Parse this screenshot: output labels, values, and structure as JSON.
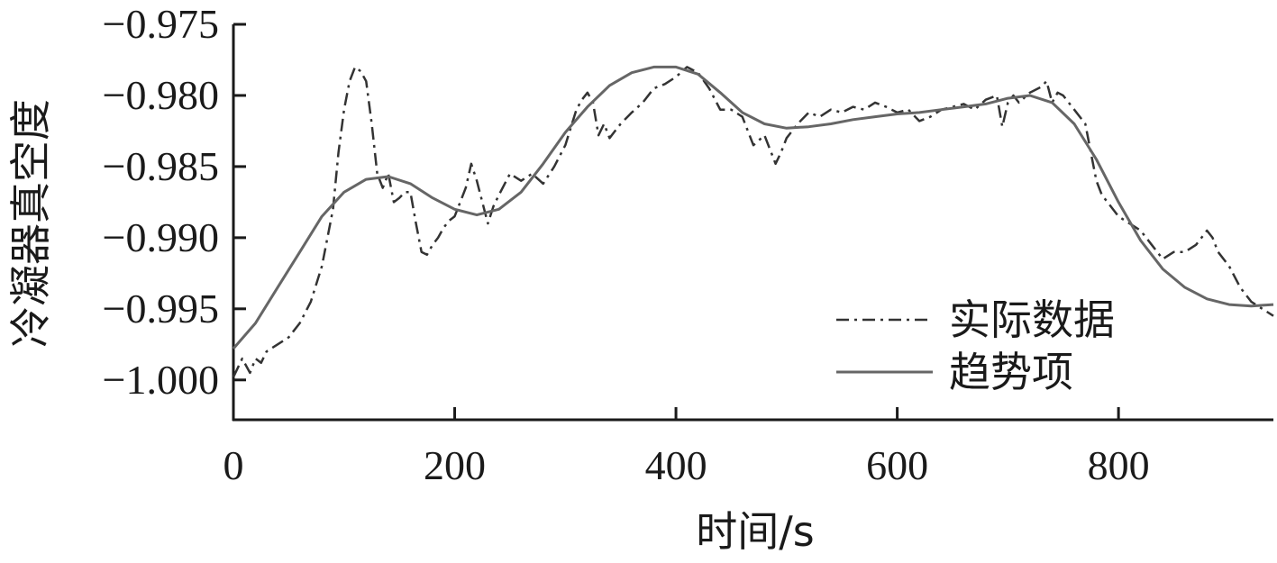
{
  "chart_data": {
    "type": "line",
    "xlabel": "时间/s",
    "ylabel": "冷凝器真空度",
    "xlim": [
      0,
      940
    ],
    "ylim": [
      -1.0028,
      -0.975
    ],
    "xticks": [
      0,
      200,
      400,
      600,
      800
    ],
    "xtick_labels": [
      "0",
      "200",
      "400",
      "600",
      "800"
    ],
    "yticks": [
      -0.975,
      -0.98,
      -0.985,
      -0.99,
      -0.995,
      -1.0
    ],
    "ytick_labels": [
      "−0.975",
      "−0.980",
      "−0.985",
      "−0.990",
      "−0.995",
      "−1.000"
    ],
    "legend_position": "bottom-right",
    "grid": false,
    "series": [
      {
        "name": "实际数据",
        "style": "dash-dot",
        "color": "#333333",
        "x": [
          0,
          8,
          15,
          20,
          25,
          30,
          40,
          50,
          60,
          70,
          80,
          90,
          95,
          100,
          105,
          110,
          115,
          120,
          125,
          130,
          135,
          140,
          145,
          150,
          155,
          160,
          165,
          170,
          175,
          180,
          185,
          190,
          195,
          200,
          210,
          215,
          220,
          225,
          230,
          235,
          240,
          250,
          260,
          270,
          280,
          290,
          300,
          310,
          315,
          320,
          325,
          330,
          335,
          340,
          345,
          350,
          360,
          370,
          380,
          390,
          400,
          410,
          420,
          430,
          440,
          450,
          460,
          470,
          480,
          490,
          495,
          500,
          510,
          520,
          530,
          540,
          550,
          560,
          570,
          580,
          590,
          600,
          610,
          620,
          630,
          640,
          650,
          660,
          670,
          680,
          690,
          695,
          700,
          705,
          710,
          720,
          730,
          735,
          740,
          745,
          750,
          760,
          770,
          775,
          780,
          785,
          790,
          800,
          810,
          820,
          830,
          840,
          850,
          860,
          870,
          880,
          885,
          890,
          900,
          910,
          920,
          930,
          940
        ],
        "y": [
          -0.9998,
          -0.9985,
          -0.9995,
          -0.9985,
          -0.9988,
          -0.998,
          -0.9975,
          -0.997,
          -0.996,
          -0.9945,
          -0.992,
          -0.988,
          -0.984,
          -0.981,
          -0.979,
          -0.978,
          -0.9783,
          -0.979,
          -0.982,
          -0.9855,
          -0.9865,
          -0.9855,
          -0.9875,
          -0.9872,
          -0.9868,
          -0.9868,
          -0.989,
          -0.991,
          -0.9912,
          -0.9905,
          -0.99,
          -0.9893,
          -0.9888,
          -0.9885,
          -0.9865,
          -0.9848,
          -0.986,
          -0.9875,
          -0.989,
          -0.9878,
          -0.987,
          -0.9855,
          -0.986,
          -0.9855,
          -0.9862,
          -0.985,
          -0.9835,
          -0.981,
          -0.9803,
          -0.9798,
          -0.9805,
          -0.9828,
          -0.982,
          -0.983,
          -0.9825,
          -0.982,
          -0.9812,
          -0.9805,
          -0.9795,
          -0.9792,
          -0.9787,
          -0.978,
          -0.9784,
          -0.9795,
          -0.981,
          -0.981,
          -0.9815,
          -0.9835,
          -0.9828,
          -0.9848,
          -0.984,
          -0.983,
          -0.982,
          -0.9812,
          -0.9815,
          -0.981,
          -0.9812,
          -0.9808,
          -0.981,
          -0.9805,
          -0.9808,
          -0.9812,
          -0.981,
          -0.9818,
          -0.9815,
          -0.981,
          -0.9808,
          -0.9806,
          -0.981,
          -0.9803,
          -0.98,
          -0.9822,
          -0.9805,
          -0.98,
          -0.9805,
          -0.9798,
          -0.9794,
          -0.979,
          -0.9805,
          -0.9798,
          -0.98,
          -0.981,
          -0.982,
          -0.984,
          -0.986,
          -0.987,
          -0.9875,
          -0.9885,
          -0.989,
          -0.9895,
          -0.9905,
          -0.9915,
          -0.991,
          -0.991,
          -0.9905,
          -0.9895,
          -0.99,
          -0.991,
          -0.992,
          -0.9935,
          -0.9945,
          -0.995,
          -0.9955
        ]
      },
      {
        "name": "趋势项",
        "style": "solid",
        "color": "#666666",
        "x": [
          0,
          20,
          40,
          60,
          80,
          100,
          120,
          140,
          160,
          180,
          200,
          220,
          240,
          260,
          280,
          300,
          320,
          340,
          360,
          380,
          400,
          420,
          440,
          460,
          480,
          500,
          520,
          540,
          560,
          580,
          600,
          620,
          640,
          660,
          680,
          700,
          720,
          740,
          760,
          780,
          800,
          820,
          840,
          860,
          880,
          900,
          920,
          940
        ],
        "y": [
          -0.9978,
          -0.996,
          -0.9935,
          -0.991,
          -0.9885,
          -0.9868,
          -0.9859,
          -0.9857,
          -0.9862,
          -0.9872,
          -0.988,
          -0.9884,
          -0.988,
          -0.9868,
          -0.9848,
          -0.9826,
          -0.9808,
          -0.9793,
          -0.9784,
          -0.978,
          -0.978,
          -0.9785,
          -0.9798,
          -0.9812,
          -0.982,
          -0.9823,
          -0.9822,
          -0.982,
          -0.9817,
          -0.9815,
          -0.9813,
          -0.9812,
          -0.981,
          -0.9808,
          -0.9806,
          -0.9802,
          -0.98,
          -0.9805,
          -0.982,
          -0.9845,
          -0.9875,
          -0.9902,
          -0.9922,
          -0.9935,
          -0.9943,
          -0.9947,
          -0.9948,
          -0.9947
        ]
      }
    ]
  }
}
